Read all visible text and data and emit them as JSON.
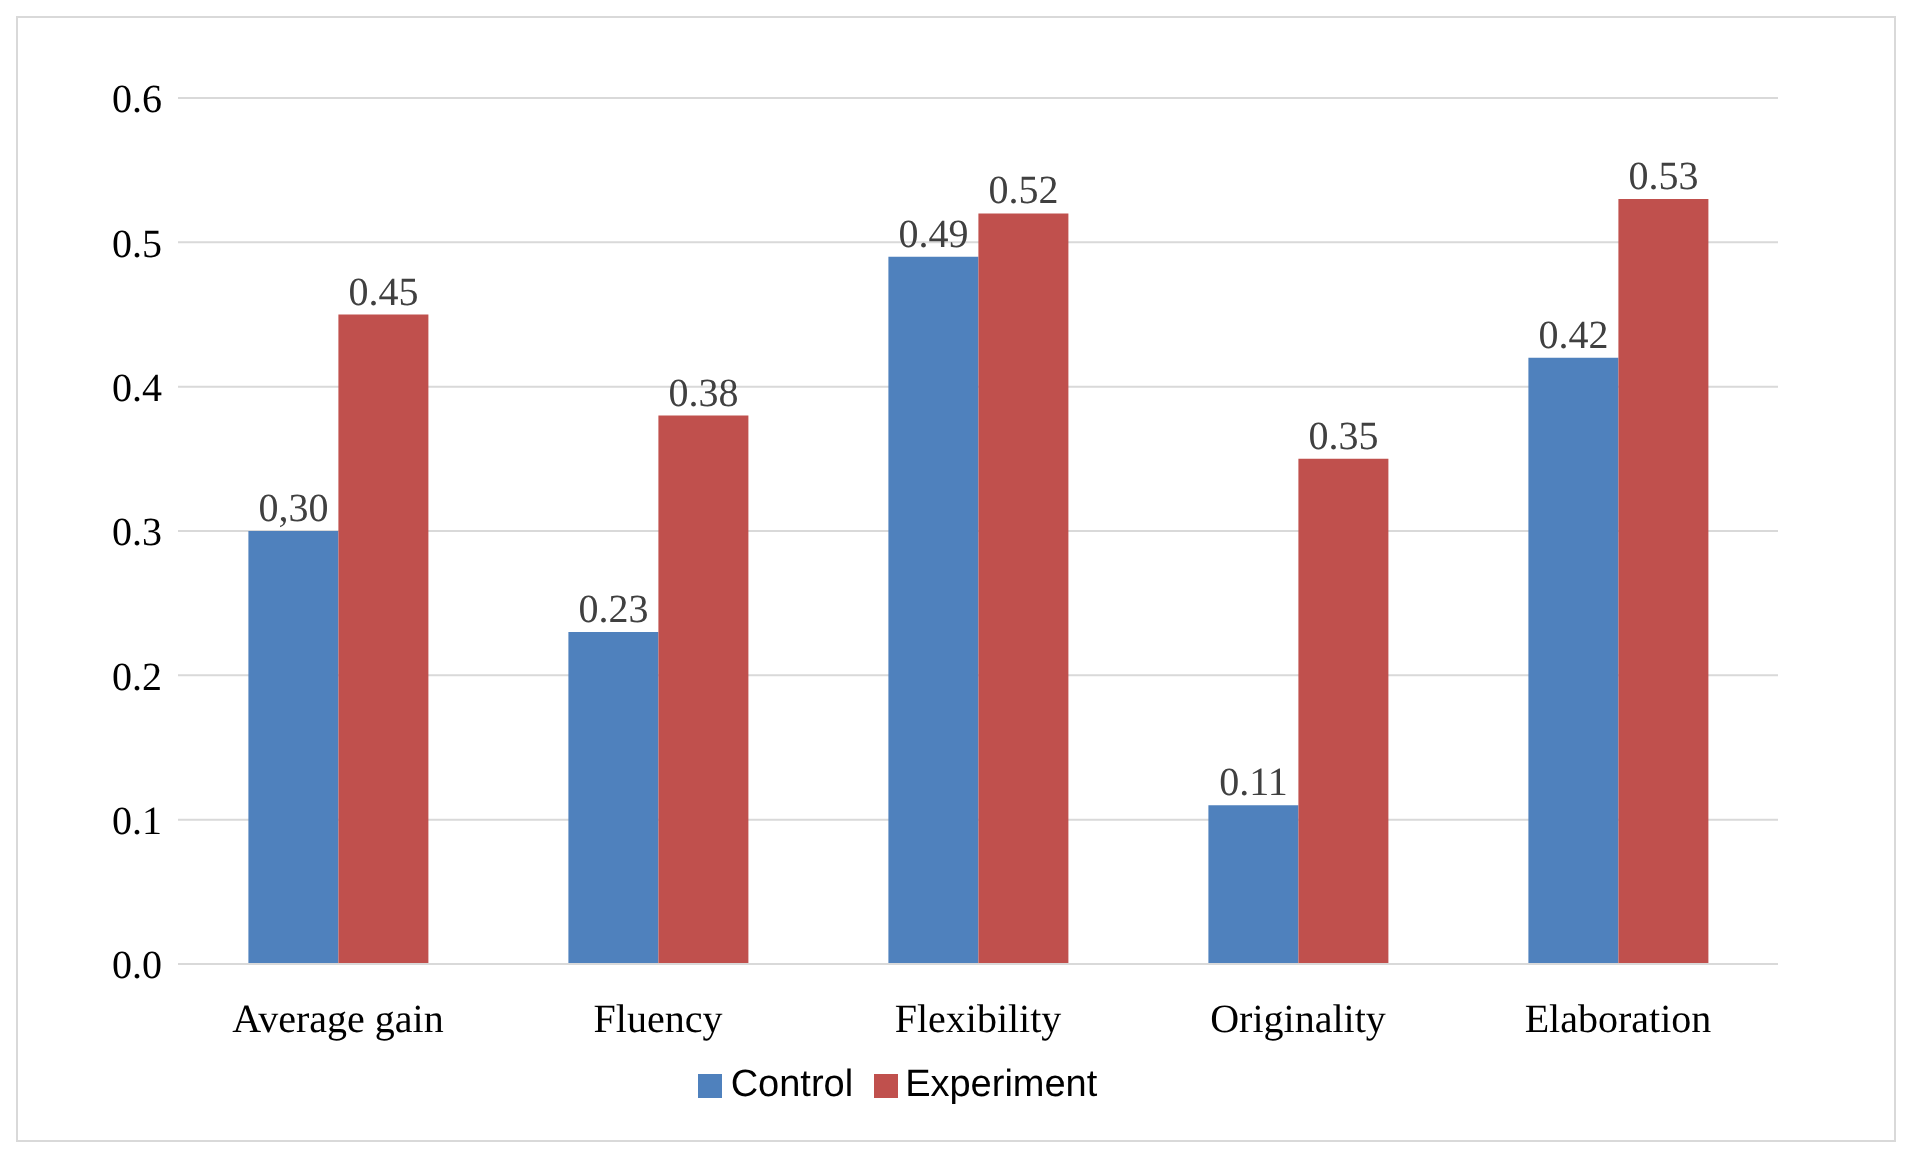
{
  "chart_data": {
    "type": "bar",
    "categories": [
      "Average gain",
      "Fluency",
      "Flexibility",
      "Originality",
      "Elaboration"
    ],
    "series": [
      {
        "name": "Control",
        "color": "#4f81bd",
        "values": [
          0.3,
          0.23,
          0.49,
          0.11,
          0.42
        ],
        "value_labels": [
          "0,30",
          "0.23",
          "0.49",
          "0.11",
          "0.42"
        ]
      },
      {
        "name": "Experiment",
        "color": "#c0504d",
        "values": [
          0.45,
          0.38,
          0.52,
          0.35,
          0.53
        ],
        "value_labels": [
          "0.45",
          "0.38",
          "0.52",
          "0.35",
          "0.53"
        ]
      }
    ],
    "ylim": [
      0,
      0.6
    ],
    "yticks": [
      {
        "value": 0,
        "label": "0.0"
      },
      0.1,
      0.2,
      0.3,
      0.4,
      0.5,
      0.6
    ],
    "grid": "y",
    "legend": "bottom"
  }
}
